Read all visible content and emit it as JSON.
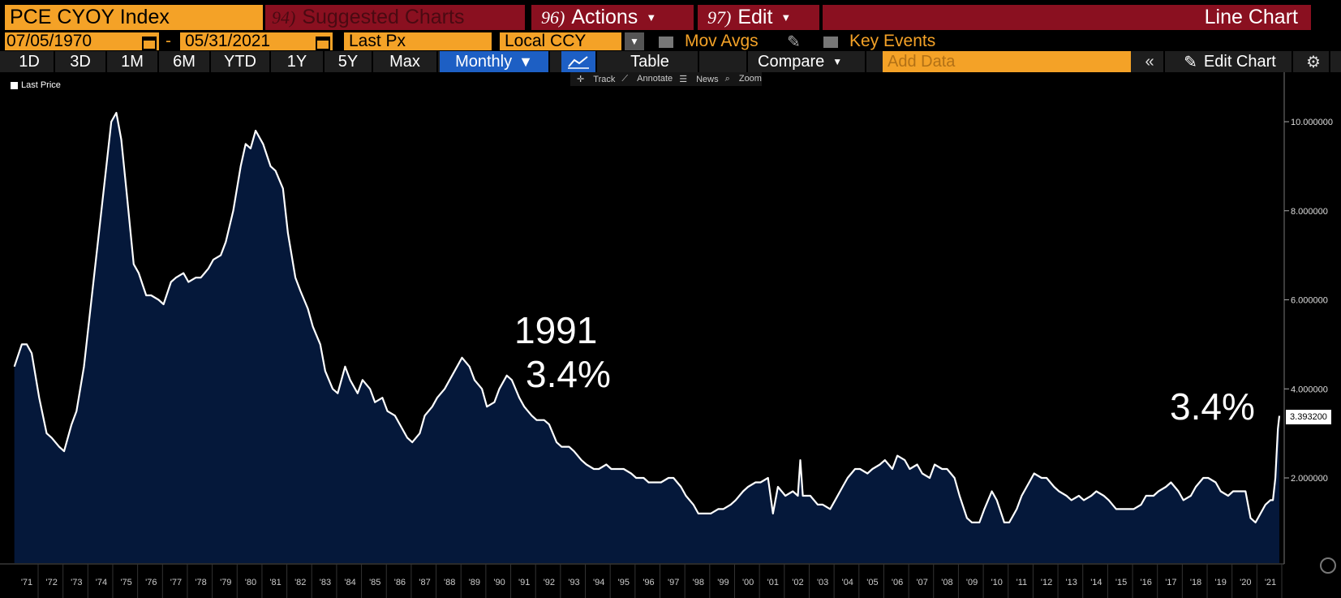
{
  "header": {
    "ticker": "PCE CYOY Index",
    "suggest_num": "94)",
    "suggest_label": "Suggested Charts",
    "actions_num": "96)",
    "actions_label": "Actions",
    "edit_num": "97)",
    "edit_label": "Edit",
    "chart_type": "Line Chart"
  },
  "controls": {
    "date_from": "07/05/1970",
    "dash": "-",
    "date_to": "05/31/2021",
    "field": "Last Px",
    "currency": "Local CCY",
    "mov_avgs": "Mov Avgs",
    "key_events": "Key Events"
  },
  "toolbar": {
    "ranges": [
      "1D",
      "3D",
      "1M",
      "6M",
      "YTD",
      "1Y",
      "5Y",
      "Max"
    ],
    "period": "Monthly",
    "table": "Table",
    "compare": "Compare",
    "add_data_placeholder": "Add Data",
    "edit_chart": "Edit Chart"
  },
  "chart_tools": {
    "track": "Track",
    "annotate": "Annotate",
    "news": "News",
    "zoom": "Zoom"
  },
  "colors": {
    "accent_orange": "#f4a227",
    "menu_red": "#8a1020",
    "selected_blue": "#1d5fc4",
    "area_fill": "#05183a",
    "line": "#ffffff"
  },
  "chart_data": {
    "type": "area",
    "legend": [
      "Last Price"
    ],
    "last_value_label": "3.393200",
    "annotations": [
      {
        "text": "1991",
        "x": 1991.3,
        "y": 3.4
      },
      {
        "text": "3.4%",
        "x": 1991.3,
        "y": 3.4
      },
      {
        "text": "3.4%",
        "x": 2021.33,
        "y": 3.3932
      }
    ],
    "x_ticks": [
      "'71",
      "'72",
      "'73",
      "'74",
      "'75",
      "'76",
      "'77",
      "'78",
      "'79",
      "'80",
      "'81",
      "'82",
      "'83",
      "'84",
      "'85",
      "'86",
      "'87",
      "'88",
      "'89",
      "'90",
      "'91",
      "'92",
      "'93",
      "'94",
      "'95",
      "'96",
      "'97",
      "'98",
      "'99",
      "'00",
      "'01",
      "'02",
      "'03",
      "'04",
      "'05",
      "'06",
      "'07",
      "'08",
      "'09",
      "'10",
      "'11",
      "'12",
      "'13",
      "'14",
      "'15",
      "'16",
      "'17",
      "'18",
      "'19",
      "'20",
      "'21"
    ],
    "y_ticks": [
      "2.000000",
      "4.000000",
      "6.000000",
      "8.000000",
      "10.000000"
    ],
    "ylim": [
      0,
      10.8
    ],
    "series": [
      {
        "name": "Last Price",
        "points": [
          [
            1970.5,
            4.5
          ],
          [
            1970.8,
            5.0
          ],
          [
            1971.0,
            5.0
          ],
          [
            1971.2,
            4.8
          ],
          [
            1971.5,
            3.8
          ],
          [
            1971.8,
            3.0
          ],
          [
            1972.0,
            2.9
          ],
          [
            1972.3,
            2.7
          ],
          [
            1972.5,
            2.6
          ],
          [
            1972.8,
            3.2
          ],
          [
            1973.0,
            3.5
          ],
          [
            1973.3,
            4.5
          ],
          [
            1973.6,
            6.0
          ],
          [
            1973.9,
            7.5
          ],
          [
            1974.2,
            9.0
          ],
          [
            1974.4,
            10.0
          ],
          [
            1974.6,
            10.2
          ],
          [
            1974.8,
            9.6
          ],
          [
            1975.0,
            8.5
          ],
          [
            1975.3,
            6.8
          ],
          [
            1975.5,
            6.6
          ],
          [
            1975.8,
            6.1
          ],
          [
            1976.0,
            6.1
          ],
          [
            1976.3,
            6.0
          ],
          [
            1976.5,
            5.9
          ],
          [
            1976.8,
            6.4
          ],
          [
            1977.0,
            6.5
          ],
          [
            1977.3,
            6.6
          ],
          [
            1977.5,
            6.4
          ],
          [
            1977.8,
            6.5
          ],
          [
            1978.0,
            6.5
          ],
          [
            1978.3,
            6.7
          ],
          [
            1978.5,
            6.9
          ],
          [
            1978.8,
            7.0
          ],
          [
            1979.0,
            7.3
          ],
          [
            1979.3,
            8.0
          ],
          [
            1979.6,
            9.0
          ],
          [
            1979.8,
            9.5
          ],
          [
            1980.0,
            9.4
          ],
          [
            1980.2,
            9.8
          ],
          [
            1980.5,
            9.5
          ],
          [
            1980.8,
            9.0
          ],
          [
            1981.0,
            8.9
          ],
          [
            1981.3,
            8.5
          ],
          [
            1981.5,
            7.5
          ],
          [
            1981.8,
            6.5
          ],
          [
            1982.0,
            6.2
          ],
          [
            1982.3,
            5.8
          ],
          [
            1982.5,
            5.4
          ],
          [
            1982.8,
            5.0
          ],
          [
            1983.0,
            4.4
          ],
          [
            1983.3,
            4.0
          ],
          [
            1983.5,
            3.9
          ],
          [
            1983.8,
            4.5
          ],
          [
            1984.0,
            4.2
          ],
          [
            1984.3,
            3.9
          ],
          [
            1984.5,
            4.2
          ],
          [
            1984.8,
            4.0
          ],
          [
            1985.0,
            3.7
          ],
          [
            1985.3,
            3.8
          ],
          [
            1985.5,
            3.5
          ],
          [
            1985.8,
            3.4
          ],
          [
            1986.0,
            3.2
          ],
          [
            1986.3,
            2.9
          ],
          [
            1986.5,
            2.8
          ],
          [
            1986.8,
            3.0
          ],
          [
            1987.0,
            3.4
          ],
          [
            1987.3,
            3.6
          ],
          [
            1987.5,
            3.8
          ],
          [
            1987.8,
            4.0
          ],
          [
            1988.0,
            4.2
          ],
          [
            1988.3,
            4.5
          ],
          [
            1988.5,
            4.7
          ],
          [
            1988.8,
            4.5
          ],
          [
            1989.0,
            4.2
          ],
          [
            1989.3,
            4.0
          ],
          [
            1989.5,
            3.6
          ],
          [
            1989.8,
            3.7
          ],
          [
            1990.0,
            4.0
          ],
          [
            1990.3,
            4.3
          ],
          [
            1990.5,
            4.2
          ],
          [
            1990.8,
            3.8
          ],
          [
            1991.0,
            3.6
          ],
          [
            1991.3,
            3.4
          ],
          [
            1991.5,
            3.3
          ],
          [
            1991.8,
            3.3
          ],
          [
            1992.0,
            3.2
          ],
          [
            1992.3,
            2.8
          ],
          [
            1992.5,
            2.7
          ],
          [
            1992.8,
            2.7
          ],
          [
            1993.0,
            2.6
          ],
          [
            1993.3,
            2.4
          ],
          [
            1993.5,
            2.3
          ],
          [
            1993.8,
            2.2
          ],
          [
            1994.0,
            2.2
          ],
          [
            1994.3,
            2.3
          ],
          [
            1994.5,
            2.2
          ],
          [
            1994.8,
            2.2
          ],
          [
            1995.0,
            2.2
          ],
          [
            1995.3,
            2.1
          ],
          [
            1995.5,
            2.0
          ],
          [
            1995.8,
            2.0
          ],
          [
            1996.0,
            1.9
          ],
          [
            1996.3,
            1.9
          ],
          [
            1996.5,
            1.9
          ],
          [
            1996.8,
            2.0
          ],
          [
            1997.0,
            2.0
          ],
          [
            1997.3,
            1.8
          ],
          [
            1997.5,
            1.6
          ],
          [
            1997.8,
            1.4
          ],
          [
            1998.0,
            1.2
          ],
          [
            1998.3,
            1.2
          ],
          [
            1998.5,
            1.2
          ],
          [
            1998.8,
            1.3
          ],
          [
            1999.0,
            1.3
          ],
          [
            1999.3,
            1.4
          ],
          [
            1999.5,
            1.5
          ],
          [
            1999.8,
            1.7
          ],
          [
            2000.0,
            1.8
          ],
          [
            2000.3,
            1.9
          ],
          [
            2000.5,
            1.9
          ],
          [
            2000.8,
            2.0
          ],
          [
            2001.0,
            1.2
          ],
          [
            2001.2,
            1.8
          ],
          [
            2001.5,
            1.6
          ],
          [
            2001.8,
            1.7
          ],
          [
            2002.0,
            1.6
          ],
          [
            2002.1,
            2.4
          ],
          [
            2002.2,
            1.6
          ],
          [
            2002.5,
            1.6
          ],
          [
            2002.8,
            1.4
          ],
          [
            2003.0,
            1.4
          ],
          [
            2003.3,
            1.3
          ],
          [
            2003.5,
            1.5
          ],
          [
            2003.8,
            1.8
          ],
          [
            2004.0,
            2.0
          ],
          [
            2004.3,
            2.2
          ],
          [
            2004.5,
            2.2
          ],
          [
            2004.8,
            2.1
          ],
          [
            2005.0,
            2.2
          ],
          [
            2005.3,
            2.3
          ],
          [
            2005.5,
            2.4
          ],
          [
            2005.8,
            2.2
          ],
          [
            2006.0,
            2.5
          ],
          [
            2006.3,
            2.4
          ],
          [
            2006.5,
            2.2
          ],
          [
            2006.8,
            2.3
          ],
          [
            2007.0,
            2.1
          ],
          [
            2007.3,
            2.0
          ],
          [
            2007.5,
            2.3
          ],
          [
            2007.8,
            2.2
          ],
          [
            2008.0,
            2.2
          ],
          [
            2008.3,
            2.0
          ],
          [
            2008.5,
            1.6
          ],
          [
            2008.8,
            1.1
          ],
          [
            2009.0,
            1.0
          ],
          [
            2009.3,
            1.0
          ],
          [
            2009.5,
            1.3
          ],
          [
            2009.8,
            1.7
          ],
          [
            2010.0,
            1.5
          ],
          [
            2010.3,
            1.0
          ],
          [
            2010.5,
            1.0
          ],
          [
            2010.8,
            1.3
          ],
          [
            2011.0,
            1.6
          ],
          [
            2011.3,
            1.9
          ],
          [
            2011.5,
            2.1
          ],
          [
            2011.8,
            2.0
          ],
          [
            2012.0,
            2.0
          ],
          [
            2012.3,
            1.8
          ],
          [
            2012.5,
            1.7
          ],
          [
            2012.8,
            1.6
          ],
          [
            2013.0,
            1.5
          ],
          [
            2013.3,
            1.6
          ],
          [
            2013.5,
            1.5
          ],
          [
            2013.8,
            1.6
          ],
          [
            2014.0,
            1.7
          ],
          [
            2014.3,
            1.6
          ],
          [
            2014.5,
            1.5
          ],
          [
            2014.8,
            1.3
          ],
          [
            2015.0,
            1.3
          ],
          [
            2015.3,
            1.3
          ],
          [
            2015.5,
            1.3
          ],
          [
            2015.8,
            1.4
          ],
          [
            2016.0,
            1.6
          ],
          [
            2016.3,
            1.6
          ],
          [
            2016.5,
            1.7
          ],
          [
            2016.8,
            1.8
          ],
          [
            2017.0,
            1.9
          ],
          [
            2017.3,
            1.7
          ],
          [
            2017.5,
            1.5
          ],
          [
            2017.8,
            1.6
          ],
          [
            2018.0,
            1.8
          ],
          [
            2018.3,
            2.0
          ],
          [
            2018.5,
            2.0
          ],
          [
            2018.8,
            1.9
          ],
          [
            2019.0,
            1.7
          ],
          [
            2019.3,
            1.6
          ],
          [
            2019.5,
            1.7
          ],
          [
            2019.8,
            1.7
          ],
          [
            2020.0,
            1.7
          ],
          [
            2020.2,
            1.1
          ],
          [
            2020.4,
            1.0
          ],
          [
            2020.5,
            1.1
          ],
          [
            2020.8,
            1.4
          ],
          [
            2021.0,
            1.5
          ],
          [
            2021.1,
            1.5
          ],
          [
            2021.2,
            2.0
          ],
          [
            2021.3,
            3.1
          ],
          [
            2021.36,
            3.3932
          ]
        ]
      }
    ]
  }
}
